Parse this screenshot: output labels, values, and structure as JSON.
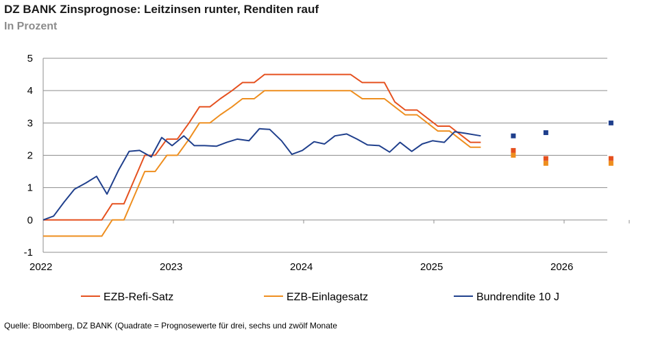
{
  "title": "DZ BANK Zinsprognose: Leitzinsen runter, Renditen rauf",
  "subtitle": "In Prozent",
  "source": "Quelle: Bloomberg, DZ BANK (Quadrate = Prognosewerte für drei, sechs und zwölf Monate",
  "chart_data": {
    "type": "line",
    "title": "DZ BANK Zinsprognose: Leitzinsen runter, Renditen rauf",
    "subtitle": "In Prozent",
    "xlabel": "",
    "ylabel": "",
    "xlim": [
      2022.0,
      2026.5
    ],
    "ylim": [
      -1,
      5
    ],
    "y_ticks": [
      "-1",
      "0",
      "1",
      "2",
      "3",
      "4",
      "5"
    ],
    "y_tick_values": [
      -1,
      0,
      1,
      2,
      3,
      4,
      5
    ],
    "x_ticks": [
      "2022",
      "2023",
      "2024",
      "2025",
      "2026"
    ],
    "x_tick_values": [
      2022,
      2023,
      2024,
      2025,
      2026
    ],
    "grid": "horizontal",
    "legend_position": "bottom",
    "series": [
      {
        "name": "EZB-Refi-Satz",
        "color": "#E5501E",
        "x": [
          2022.0,
          2022.45,
          2022.53,
          2022.62,
          2022.7,
          2022.78,
          2022.86,
          2022.95,
          2023.03,
          2023.12,
          2023.2,
          2023.28,
          2023.36,
          2023.45,
          2023.53,
          2023.62,
          2023.7,
          2023.78,
          2024.36,
          2024.45,
          2024.53,
          2024.62,
          2024.7,
          2024.78,
          2024.87,
          2024.95,
          2025.03,
          2025.12,
          2025.2,
          2025.28,
          2025.36
        ],
        "values": [
          0,
          0,
          0.5,
          0.5,
          1.25,
          2.0,
          2.0,
          2.5,
          2.5,
          3.0,
          3.5,
          3.5,
          3.75,
          4.0,
          4.25,
          4.25,
          4.5,
          4.5,
          4.5,
          4.25,
          4.25,
          4.25,
          3.65,
          3.4,
          3.4,
          3.15,
          2.9,
          2.9,
          2.65,
          2.4,
          2.4
        ]
      },
      {
        "name": "EZB-Einlagesatz",
        "color": "#EE8E1E",
        "x": [
          2022.0,
          2022.45,
          2022.53,
          2022.62,
          2022.7,
          2022.78,
          2022.86,
          2022.95,
          2023.03,
          2023.12,
          2023.2,
          2023.28,
          2023.36,
          2023.45,
          2023.53,
          2023.62,
          2023.7,
          2023.78,
          2024.36,
          2024.45,
          2024.53,
          2024.62,
          2024.7,
          2024.78,
          2024.87,
          2024.95,
          2025.03,
          2025.12,
          2025.2,
          2025.28,
          2025.36
        ],
        "values": [
          -0.5,
          -0.5,
          0,
          0,
          0.75,
          1.5,
          1.5,
          2.0,
          2.0,
          2.5,
          3.0,
          3.0,
          3.25,
          3.5,
          3.75,
          3.75,
          4.0,
          4.0,
          4.0,
          3.75,
          3.75,
          3.75,
          3.5,
          3.25,
          3.25,
          3.0,
          2.75,
          2.75,
          2.5,
          2.25,
          2.25
        ]
      },
      {
        "name": "Bundrendite 10 J",
        "color": "#1F3F8C",
        "x": [
          2022.0,
          2022.08,
          2022.16,
          2022.24,
          2022.33,
          2022.41,
          2022.49,
          2022.58,
          2022.66,
          2022.74,
          2022.83,
          2022.91,
          2022.99,
          2023.08,
          2023.16,
          2023.24,
          2023.33,
          2023.41,
          2023.49,
          2023.58,
          2023.66,
          2023.74,
          2023.83,
          2023.91,
          2023.99,
          2024.08,
          2024.16,
          2024.24,
          2024.33,
          2024.41,
          2024.49,
          2024.58,
          2024.66,
          2024.74,
          2024.83,
          2024.91,
          2024.99,
          2025.08,
          2025.16,
          2025.24,
          2025.36
        ],
        "values": [
          0,
          0.12,
          0.55,
          0.95,
          1.15,
          1.35,
          0.8,
          1.55,
          2.12,
          2.15,
          1.95,
          2.55,
          2.3,
          2.6,
          2.3,
          2.3,
          2.28,
          2.4,
          2.5,
          2.45,
          2.82,
          2.8,
          2.45,
          2.03,
          2.15,
          2.42,
          2.35,
          2.6,
          2.66,
          2.5,
          2.32,
          2.3,
          2.1,
          2.4,
          2.12,
          2.35,
          2.45,
          2.4,
          2.73,
          2.68,
          2.6
        ]
      }
    ],
    "forecasts": [
      {
        "name": "EZB-Refi-Satz",
        "color": "#E5501E",
        "x": [
          2025.61,
          2025.86,
          2026.36
        ],
        "values": [
          2.15,
          1.9,
          1.9
        ]
      },
      {
        "name": "EZB-Einlagesatz",
        "color": "#EE8E1E",
        "x": [
          2025.61,
          2025.86,
          2026.36
        ],
        "values": [
          2.0,
          1.75,
          1.75
        ]
      },
      {
        "name": "Bundrendite 10 J",
        "color": "#1F3F8C",
        "x": [
          2025.61,
          2025.86,
          2026.36
        ],
        "values": [
          2.6,
          2.7,
          3.0
        ]
      }
    ],
    "axis_color": "#8c8c8c",
    "grid_color": "#8c8c8c"
  }
}
